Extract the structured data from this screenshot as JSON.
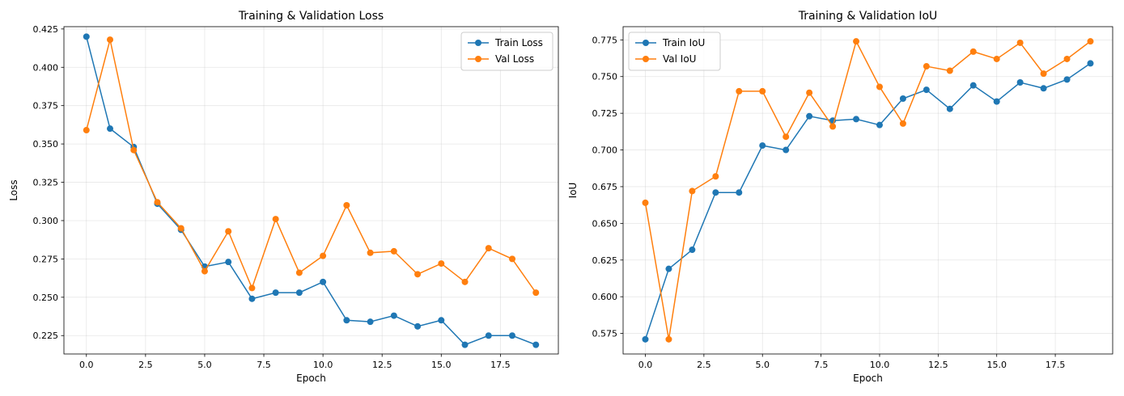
{
  "colors": {
    "train": "#1f77b4",
    "val": "#ff7f0e"
  },
  "chart_data": [
    {
      "type": "line",
      "title": "Training & Validation Loss",
      "xlabel": "Epoch",
      "ylabel": "Loss",
      "xlim": [
        -0.95,
        19.95
      ],
      "ylim": [
        0.213,
        0.4265
      ],
      "xticks": [
        0.0,
        2.5,
        5.0,
        7.5,
        10.0,
        12.5,
        15.0,
        17.5
      ],
      "xtick_labels": [
        "0.0",
        "2.5",
        "5.0",
        "7.5",
        "10.0",
        "12.5",
        "15.0",
        "17.5"
      ],
      "yticks": [
        0.225,
        0.25,
        0.275,
        0.3,
        0.325,
        0.35,
        0.375,
        0.4,
        0.425
      ],
      "ytick_labels": [
        "0.225",
        "0.250",
        "0.275",
        "0.300",
        "0.325",
        "0.350",
        "0.375",
        "0.400",
        "0.425"
      ],
      "grid": true,
      "legend": "upper-right",
      "x": [
        0,
        1,
        2,
        3,
        4,
        5,
        6,
        7,
        8,
        9,
        10,
        11,
        12,
        13,
        14,
        15,
        16,
        17,
        18,
        19
      ],
      "series": [
        {
          "name": "Train Loss",
          "color": "#1f77b4",
          "values": [
            0.42,
            0.36,
            0.348,
            0.311,
            0.294,
            0.27,
            0.273,
            0.249,
            0.253,
            0.253,
            0.26,
            0.235,
            0.234,
            0.238,
            0.231,
            0.235,
            0.219,
            0.225,
            0.225,
            0.219
          ]
        },
        {
          "name": "Val Loss",
          "color": "#ff7f0e",
          "values": [
            0.359,
            0.418,
            0.346,
            0.312,
            0.295,
            0.267,
            0.293,
            0.256,
            0.301,
            0.266,
            0.277,
            0.31,
            0.279,
            0.28,
            0.265,
            0.272,
            0.26,
            0.282,
            0.275,
            0.253
          ]
        }
      ]
    },
    {
      "type": "line",
      "title": "Training & Validation IoU",
      "xlabel": "Epoch",
      "ylabel": "IoU",
      "xlim": [
        -0.95,
        19.95
      ],
      "ylim": [
        0.561,
        0.784
      ],
      "xticks": [
        0.0,
        2.5,
        5.0,
        7.5,
        10.0,
        12.5,
        15.0,
        17.5
      ],
      "xtick_labels": [
        "0.0",
        "2.5",
        "5.0",
        "7.5",
        "10.0",
        "12.5",
        "15.0",
        "17.5"
      ],
      "yticks": [
        0.575,
        0.6,
        0.625,
        0.65,
        0.675,
        0.7,
        0.725,
        0.75,
        0.775
      ],
      "ytick_labels": [
        "0.575",
        "0.600",
        "0.625",
        "0.650",
        "0.675",
        "0.700",
        "0.725",
        "0.750",
        "0.775"
      ],
      "grid": true,
      "legend": "upper-left",
      "x": [
        0,
        1,
        2,
        3,
        4,
        5,
        6,
        7,
        8,
        9,
        10,
        11,
        12,
        13,
        14,
        15,
        16,
        17,
        18,
        19
      ],
      "series": [
        {
          "name": "Train IoU",
          "color": "#1f77b4",
          "values": [
            0.571,
            0.619,
            0.632,
            0.671,
            0.671,
            0.703,
            0.7,
            0.723,
            0.72,
            0.721,
            0.717,
            0.735,
            0.741,
            0.728,
            0.744,
            0.733,
            0.746,
            0.742,
            0.748,
            0.759
          ]
        },
        {
          "name": "Val IoU",
          "color": "#ff7f0e",
          "values": [
            0.664,
            0.571,
            0.672,
            0.682,
            0.74,
            0.74,
            0.709,
            0.739,
            0.716,
            0.774,
            0.743,
            0.718,
            0.757,
            0.754,
            0.767,
            0.762,
            0.773,
            0.752,
            0.762,
            0.774
          ]
        }
      ]
    }
  ]
}
